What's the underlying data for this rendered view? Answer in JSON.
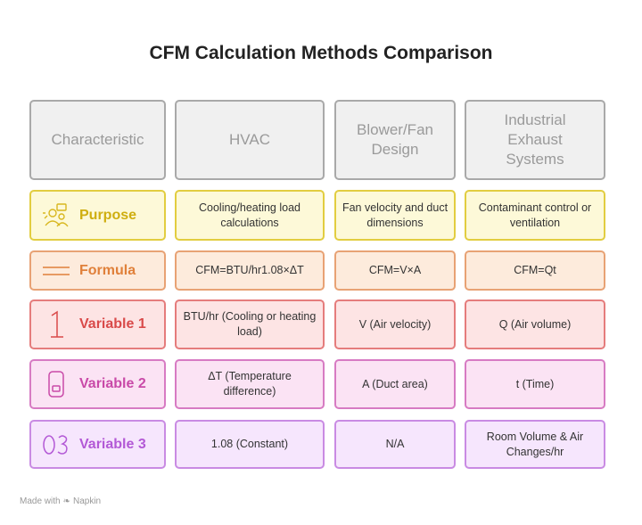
{
  "title": "CFM Calculation Methods Comparison",
  "headers": [
    "Characteristic",
    "HVAC",
    "Blower/Fan\nDesign",
    "Industrial\nExhaust\nSystems"
  ],
  "rows": [
    {
      "label": "Purpose",
      "icon": "people-group-icon",
      "cells": [
        "Cooling/heating load calculations",
        "Fan velocity and duct dimensions",
        "Contaminant control or ventilation"
      ]
    },
    {
      "label": "Formula",
      "icon": "equals-lines-icon",
      "cells": [
        "CFM=BTU/hr1.08×ΔT",
        "CFM=V×A",
        "CFM=Qt"
      ]
    },
    {
      "label": "Variable 1",
      "icon": "number-one-icon",
      "cells": [
        "BTU/hr (Cooling or heating load)",
        "V (Air velocity)",
        "Q (Air volume)"
      ]
    },
    {
      "label": "Variable 2",
      "icon": "number-two-icon",
      "cells": [
        "ΔT (Temperature difference)",
        "A (Duct area)",
        "t (Time)"
      ]
    },
    {
      "label": "Variable 3",
      "icon": "number-three-icon",
      "cells": [
        "1.08 (Constant)",
        "N/A",
        "Room Volume & Air Changes/hr"
      ]
    }
  ],
  "colors": {
    "purpose": "#e2cd40",
    "formula": "#e8a274",
    "variable1": "#e57c7c",
    "variable2": "#d77bc3",
    "variable3": "#c98be3"
  },
  "footer": {
    "made_with": "Made with",
    "brand": "Napkin"
  }
}
